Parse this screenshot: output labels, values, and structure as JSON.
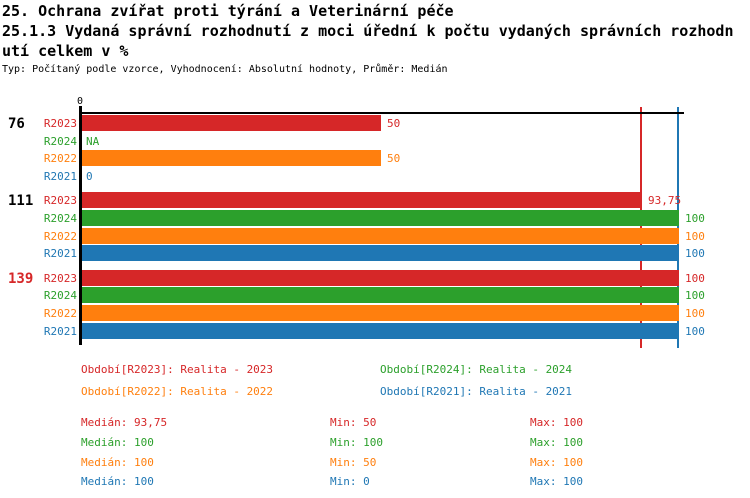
{
  "header": {
    "line1": "25. Ochrana zvířat proti týrání a Veterinární péče",
    "line2": "25.1.3 Vydaná správní rozhodnutí z moci úřední k počtu vydaných správních rozhodn",
    "line3": "utí celkem v %",
    "meta": "Typ: Počítaný podle vzorce, Vyhodnocení: Absolutní hodnoty, Průměr: Medián"
  },
  "colors": {
    "axis": "#000000",
    "background": "#ffffff",
    "series": {
      "R2023": "#d62728",
      "R2024": "#2ca02c",
      "R2022": "#ff7f0e",
      "R2021": "#1f77b4"
    },
    "highlight_group_label": "#d62728"
  },
  "chart_data": {
    "type": "bar",
    "orientation": "horizontal",
    "title": "25.1.3 Vydaná správní rozhodnutí z moci úřední k počtu vydaných správních rozhodnutí celkem v %",
    "x_axis": {
      "range": [
        0,
        100
      ],
      "tick_labels": [
        "0"
      ],
      "position": "top"
    },
    "series_order": [
      "R2023",
      "R2024",
      "R2022",
      "R2021"
    ],
    "groups": [
      {
        "label": "76",
        "label_color": "#000000",
        "values": [
          {
            "series": "R2023",
            "value": 50,
            "display": "50"
          },
          {
            "series": "R2024",
            "value": null,
            "display": "NA"
          },
          {
            "series": "R2022",
            "value": 50,
            "display": "50"
          },
          {
            "series": "R2021",
            "value": 0,
            "display": "0"
          }
        ]
      },
      {
        "label": "111",
        "label_color": "#000000",
        "values": [
          {
            "series": "R2023",
            "value": 93.75,
            "display": "93,75"
          },
          {
            "series": "R2024",
            "value": 100,
            "display": "100"
          },
          {
            "series": "R2022",
            "value": 100,
            "display": "100"
          },
          {
            "series": "R2021",
            "value": 100,
            "display": "100"
          }
        ]
      },
      {
        "label": "139",
        "label_color": "#d62728",
        "values": [
          {
            "series": "R2023",
            "value": 100,
            "display": "100"
          },
          {
            "series": "R2024",
            "value": 100,
            "display": "100"
          },
          {
            "series": "R2022",
            "value": 100,
            "display": "100"
          },
          {
            "series": "R2021",
            "value": 100,
            "display": "100"
          }
        ]
      }
    ],
    "reference_lines": [
      {
        "value": 93.75,
        "color": "#d62728",
        "name": "median-line"
      },
      {
        "value": 100,
        "color": "#1f77b4",
        "name": "max-line"
      }
    ],
    "legend_position": "bottom",
    "grid": false
  },
  "legend": [
    {
      "series": "R2023",
      "text": "Období[R2023]: Realita - 2023",
      "color": "#d62728"
    },
    {
      "series": "R2024",
      "text": "Období[R2024]: Realita - 2024",
      "color": "#2ca02c"
    },
    {
      "series": "R2022",
      "text": "Období[R2022]: Realita - 2022",
      "color": "#ff7f0e"
    },
    {
      "series": "R2021",
      "text": "Období[R2021]: Realita - 2021",
      "color": "#1f77b4"
    }
  ],
  "stats": [
    {
      "series": "R2023",
      "color": "#d62728",
      "median": "Medián: 93,75",
      "min": "Min: 50",
      "max": "Max: 100"
    },
    {
      "series": "R2024",
      "color": "#2ca02c",
      "median": "Medián: 100",
      "min": "Min: 100",
      "max": "Max: 100"
    },
    {
      "series": "R2022",
      "color": "#ff7f0e",
      "median": "Medián: 100",
      "min": "Min: 50",
      "max": "Max: 100"
    },
    {
      "series": "R2021",
      "color": "#1f77b4",
      "median": "Medián: 100",
      "min": "Min: 0",
      "max": "Max: 100"
    }
  ]
}
